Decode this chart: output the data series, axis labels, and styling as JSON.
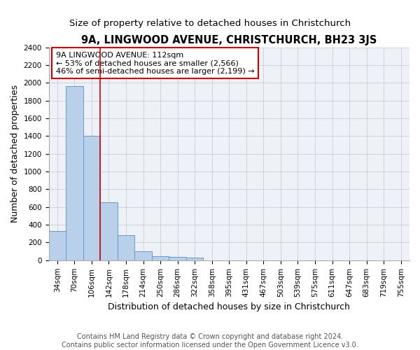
{
  "title": "9A, LINGWOOD AVENUE, CHRISTCHURCH, BH23 3JS",
  "subtitle": "Size of property relative to detached houses in Christchurch",
  "xlabel": "Distribution of detached houses by size in Christchurch",
  "ylabel": "Number of detached properties",
  "categories": [
    "34sqm",
    "70sqm",
    "106sqm",
    "142sqm",
    "178sqm",
    "214sqm",
    "250sqm",
    "286sqm",
    "322sqm",
    "358sqm",
    "395sqm",
    "431sqm",
    "467sqm",
    "503sqm",
    "539sqm",
    "575sqm",
    "611sqm",
    "647sqm",
    "683sqm",
    "719sqm",
    "755sqm"
  ],
  "bar_values": [
    330,
    1960,
    1400,
    650,
    280,
    105,
    48,
    40,
    30,
    0,
    0,
    0,
    0,
    0,
    0,
    0,
    0,
    0,
    0,
    0,
    0
  ],
  "bar_color": "#b8d0ea",
  "bar_edge_color": "#6699cc",
  "vline_x": 2.5,
  "vline_color": "#cc0000",
  "annotation_text": "9A LINGWOOD AVENUE: 112sqm\n← 53% of detached houses are smaller (2,566)\n46% of semi-detached houses are larger (2,199) →",
  "annotation_box_color": "#ffffff",
  "annotation_box_edge_color": "#cc0000",
  "ylim": [
    0,
    2400
  ],
  "yticks": [
    0,
    200,
    400,
    600,
    800,
    1000,
    1200,
    1400,
    1600,
    1800,
    2000,
    2200,
    2400
  ],
  "grid_color": "#cccccc",
  "bg_color": "#eef2f8",
  "footer_text": "Contains HM Land Registry data © Crown copyright and database right 2024.\nContains public sector information licensed under the Open Government Licence v3.0.",
  "title_fontsize": 10.5,
  "subtitle_fontsize": 9.5,
  "axis_label_fontsize": 9,
  "tick_fontsize": 7.5,
  "annotation_fontsize": 8,
  "footer_fontsize": 7
}
